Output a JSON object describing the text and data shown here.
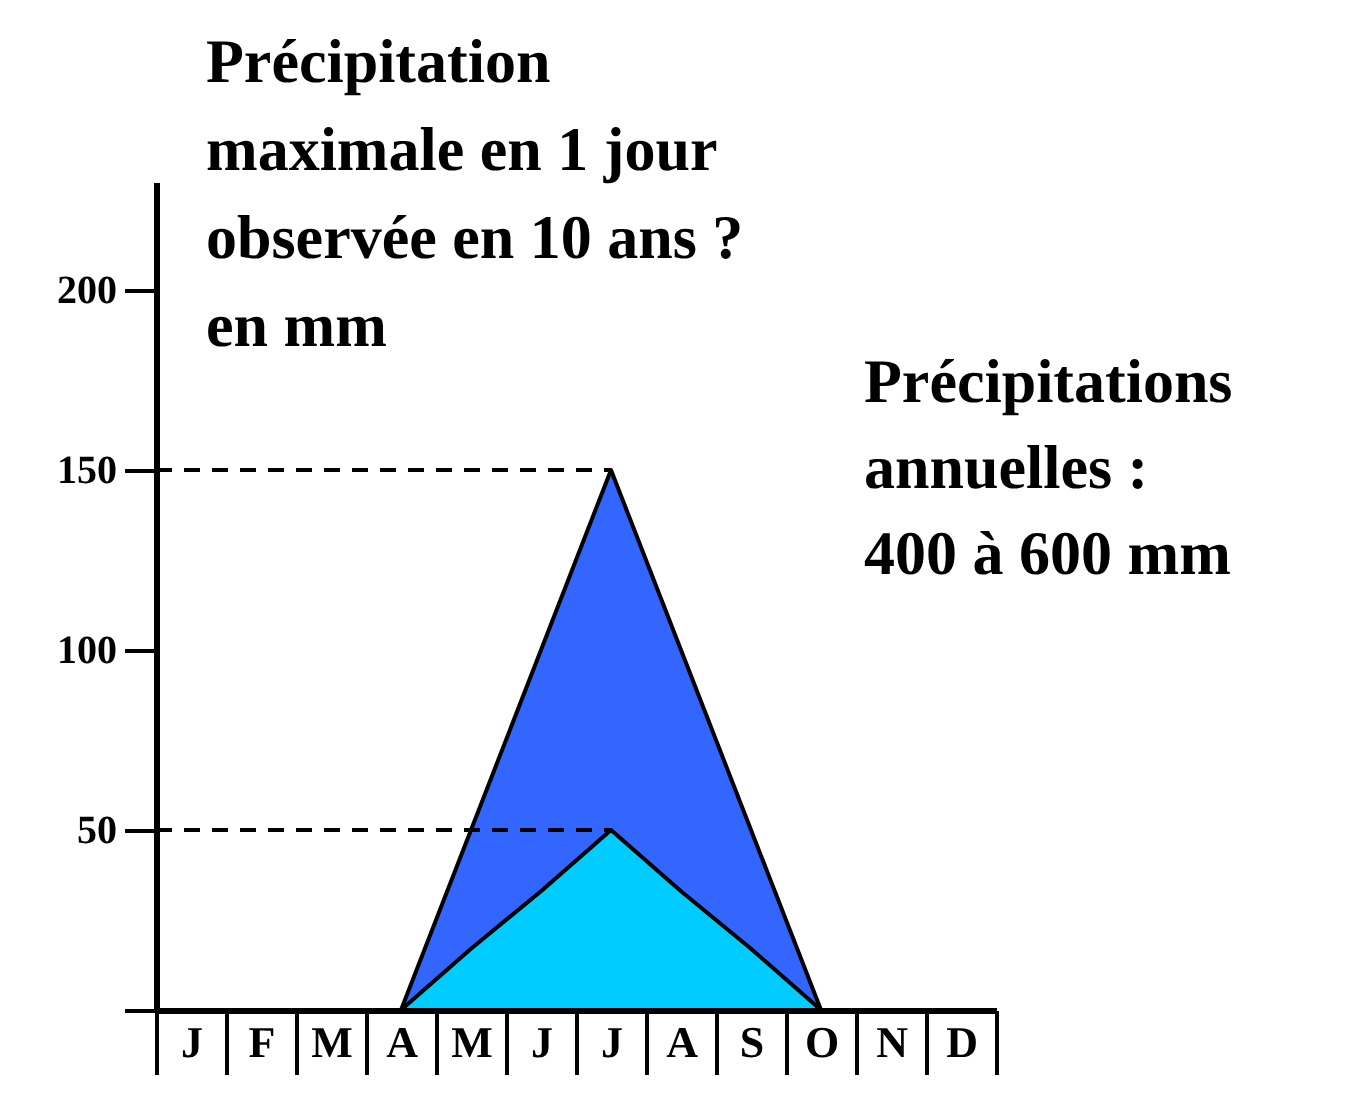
{
  "chart_data": {
    "type": "area",
    "title": "Précipitation maximale en 1 jour observée en 10 ans ? en mm",
    "categories": [
      "J",
      "F",
      "M",
      "A",
      "M",
      "J",
      "J",
      "A",
      "S",
      "O",
      "N",
      "D"
    ],
    "series": [
      {
        "color": "#3366ff",
        "values": [
          null,
          null,
          null,
          0,
          50,
          100,
          150,
          100,
          50,
          0,
          null,
          null
        ]
      },
      {
        "color": "#00ccff",
        "values": [
          null,
          null,
          null,
          0,
          17,
          33,
          50,
          33,
          17,
          0,
          null,
          null
        ]
      }
    ],
    "ylim": [
      0,
      230
    ],
    "yticks": [
      {
        "value": 0,
        "label": null
      },
      50,
      100,
      150,
      200
    ],
    "ref_lines": [
      {
        "axis": "y",
        "value": 150,
        "line_style": "dashed"
      },
      {
        "axis": "y",
        "value": 50,
        "line_style": "dashed"
      }
    ],
    "annotations": [
      "Précipitations annuelles : 400 à 600 mm"
    ]
  }
}
